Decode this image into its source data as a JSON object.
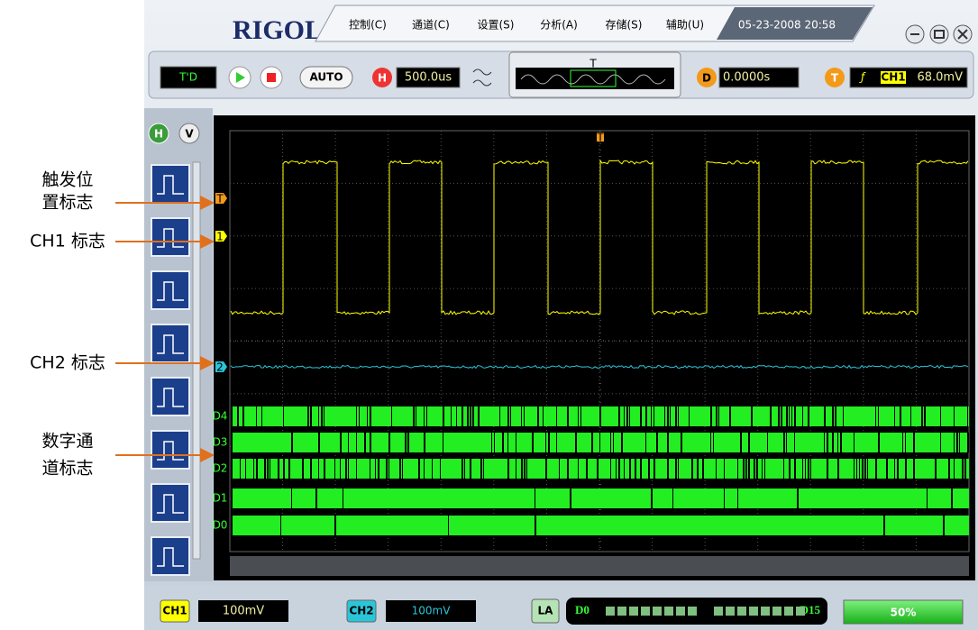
{
  "window": {
    "logo": "RIGOL",
    "menu": [
      "控制(C)",
      "通道(C)",
      "设置(S)",
      "分析(A)",
      "存储(S)",
      "辅助(U)"
    ],
    "datetime": "05-23-2008 20:58"
  },
  "toolbar": {
    "run_state": "T'D",
    "auto": "AUTO",
    "h_label": "H",
    "timebase": "500.0us",
    "preview_trigger": "T",
    "d_label": "D",
    "delay": "0.0000s",
    "t_label": "T",
    "trigger_source": "CH1",
    "trigger_level": "68.0mV"
  },
  "side_tabs": [
    "H",
    "V"
  ],
  "markers": {
    "top_trigger": "T",
    "trigger": "T",
    "ch1": "1",
    "ch2": "2",
    "digital": [
      "D4",
      "D3",
      "D2",
      "D1",
      "D0"
    ]
  },
  "bottom": {
    "ch1": "CH1",
    "ch1_scale": "100mV",
    "ch2": "CH2",
    "ch2_scale": "100mV",
    "la": "LA",
    "la_first": "D0",
    "la_last": "D15",
    "position": "50%"
  },
  "annotations": [
    [
      "触发位",
      "置标志"
    ],
    [
      "CH1 标志"
    ],
    [
      "CH2 标志"
    ],
    [
      "数字通",
      "道标志"
    ]
  ]
}
